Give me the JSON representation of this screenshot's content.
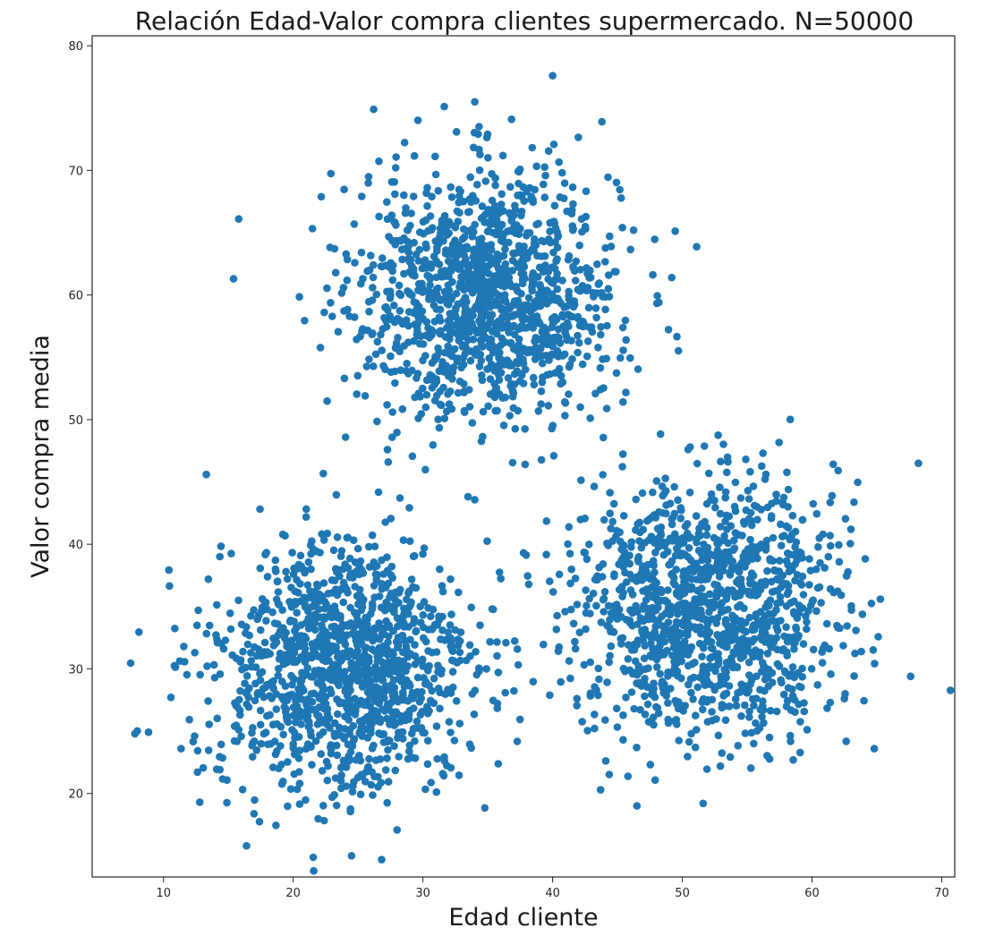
{
  "chart_data": {
    "type": "scatter",
    "title": "Relación Edad-Valor compra clientes supermercado. N=50000",
    "xlabel": "Edad cliente",
    "ylabel": "Valor compra media",
    "xlim": [
      4.5,
      71.0
    ],
    "ylim": [
      13.3,
      80.8
    ],
    "xticks": [
      10,
      20,
      30,
      40,
      50,
      60,
      70
    ],
    "yticks": [
      20,
      30,
      40,
      50,
      60,
      70,
      80
    ],
    "grid": false,
    "legend": "none",
    "marker_color": "#1f77b4",
    "clusters": [
      {
        "center": [
          35,
          60
        ],
        "std": [
          5,
          5
        ]
      },
      {
        "center": [
          24,
          30
        ],
        "std": [
          5,
          5
        ]
      },
      {
        "center": [
          52,
          35
        ],
        "std": [
          5,
          5
        ]
      }
    ],
    "points_drawn_per_cluster": 1300,
    "notable_points": [
      [
        40.0,
        77.6
      ],
      [
        34.0,
        75.5
      ],
      [
        26.2,
        74.9
      ],
      [
        43.8,
        73.9
      ],
      [
        15.8,
        66.1
      ],
      [
        15.4,
        61.3
      ],
      [
        13.3,
        45.6
      ],
      [
        68.2,
        46.5
      ],
      [
        7.8,
        24.8
      ],
      [
        12.8,
        19.3
      ],
      [
        16.4,
        15.8
      ],
      [
        24.5,
        15.0
      ],
      [
        46.5,
        19.0
      ],
      [
        51.6,
        19.2
      ],
      [
        64.8,
        23.6
      ],
      [
        67.6,
        29.4
      ]
    ]
  }
}
